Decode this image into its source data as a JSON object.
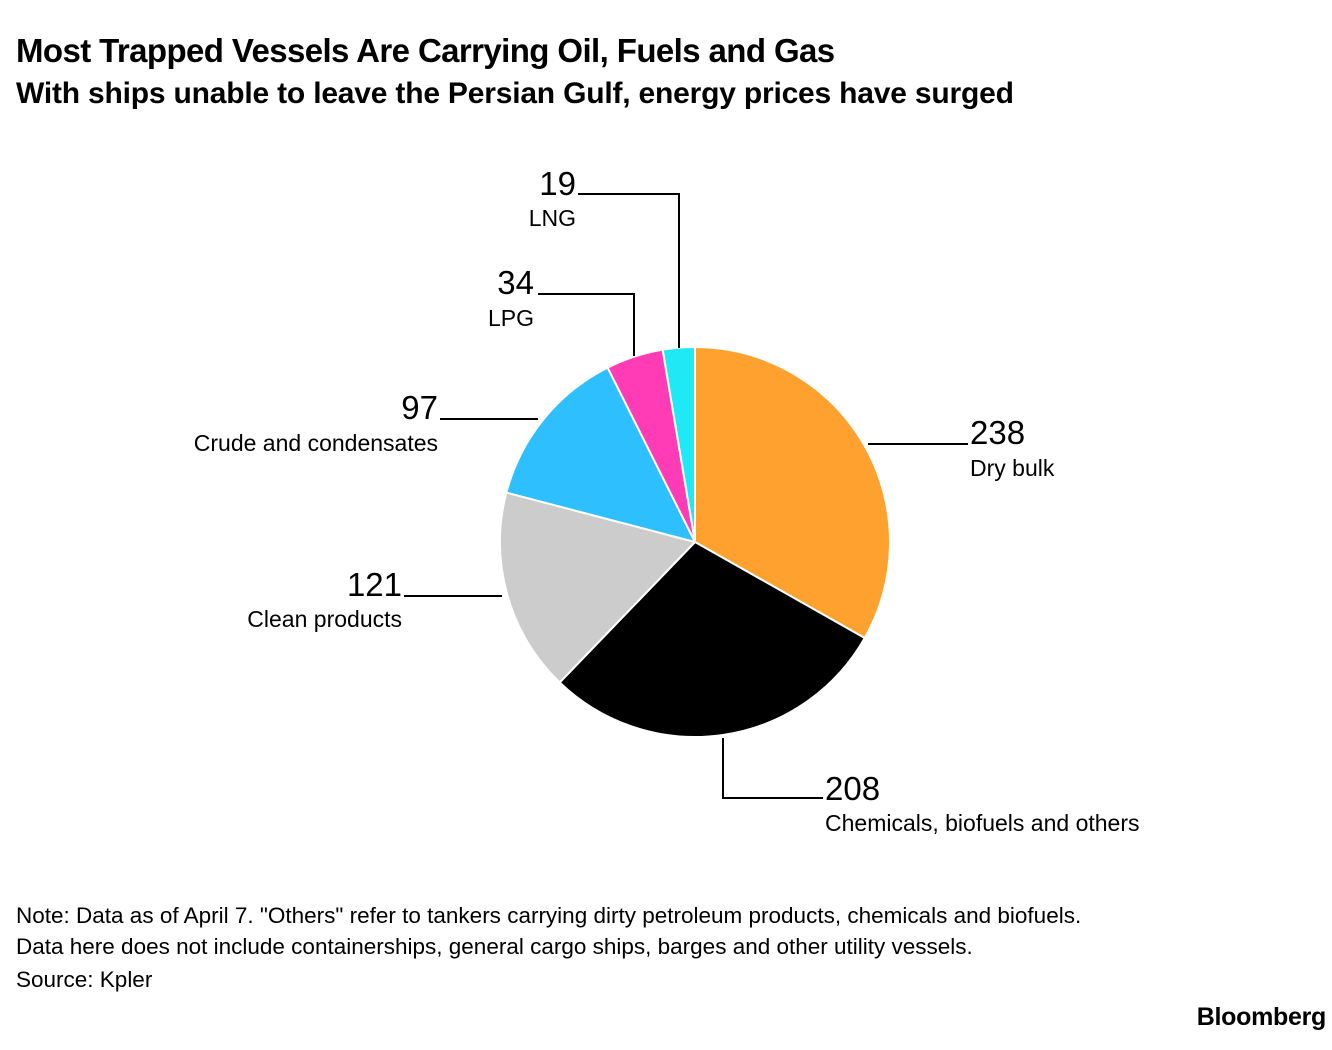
{
  "header": {
    "title": "Most Trapped Vessels Are Carrying Oil, Fuels and Gas",
    "subtitle": "With ships unable to leave the Persian Gulf, energy prices have surged"
  },
  "chart_data": {
    "type": "pie",
    "title": "Most Trapped Vessels Are Carrying Oil, Fuels and Gas",
    "subtitle": "With ships unable to leave the Persian Gulf, energy prices have surged",
    "slices": [
      {
        "label": "Dry bulk",
        "value": 238,
        "color": "#ffa12e"
      },
      {
        "label": "Chemicals, biofuels and others",
        "value": 208,
        "color": "#000000"
      },
      {
        "label": "Clean products",
        "value": 121,
        "color": "#cccccc"
      },
      {
        "label": "Crude and condensates",
        "value": 97,
        "color": "#2ebfff"
      },
      {
        "label": "LPG",
        "value": 34,
        "color": "#ff3cb6"
      },
      {
        "label": "LNG",
        "value": 19,
        "color": "#1ee9f5"
      }
    ],
    "start_angle": "12 o'clock",
    "direction": "clockwise",
    "legend": "none (direct labels with leader lines)"
  },
  "footer": {
    "note_line1": "Note: Data as of April 7. \"Others\" refer to tankers carrying dirty petroleum products, chemicals and biofuels.",
    "note_line2": "Data here does not include containerships, general cargo ships, barges and other utility vessels.",
    "source": "Source: Kpler",
    "brand": "Bloomberg"
  }
}
